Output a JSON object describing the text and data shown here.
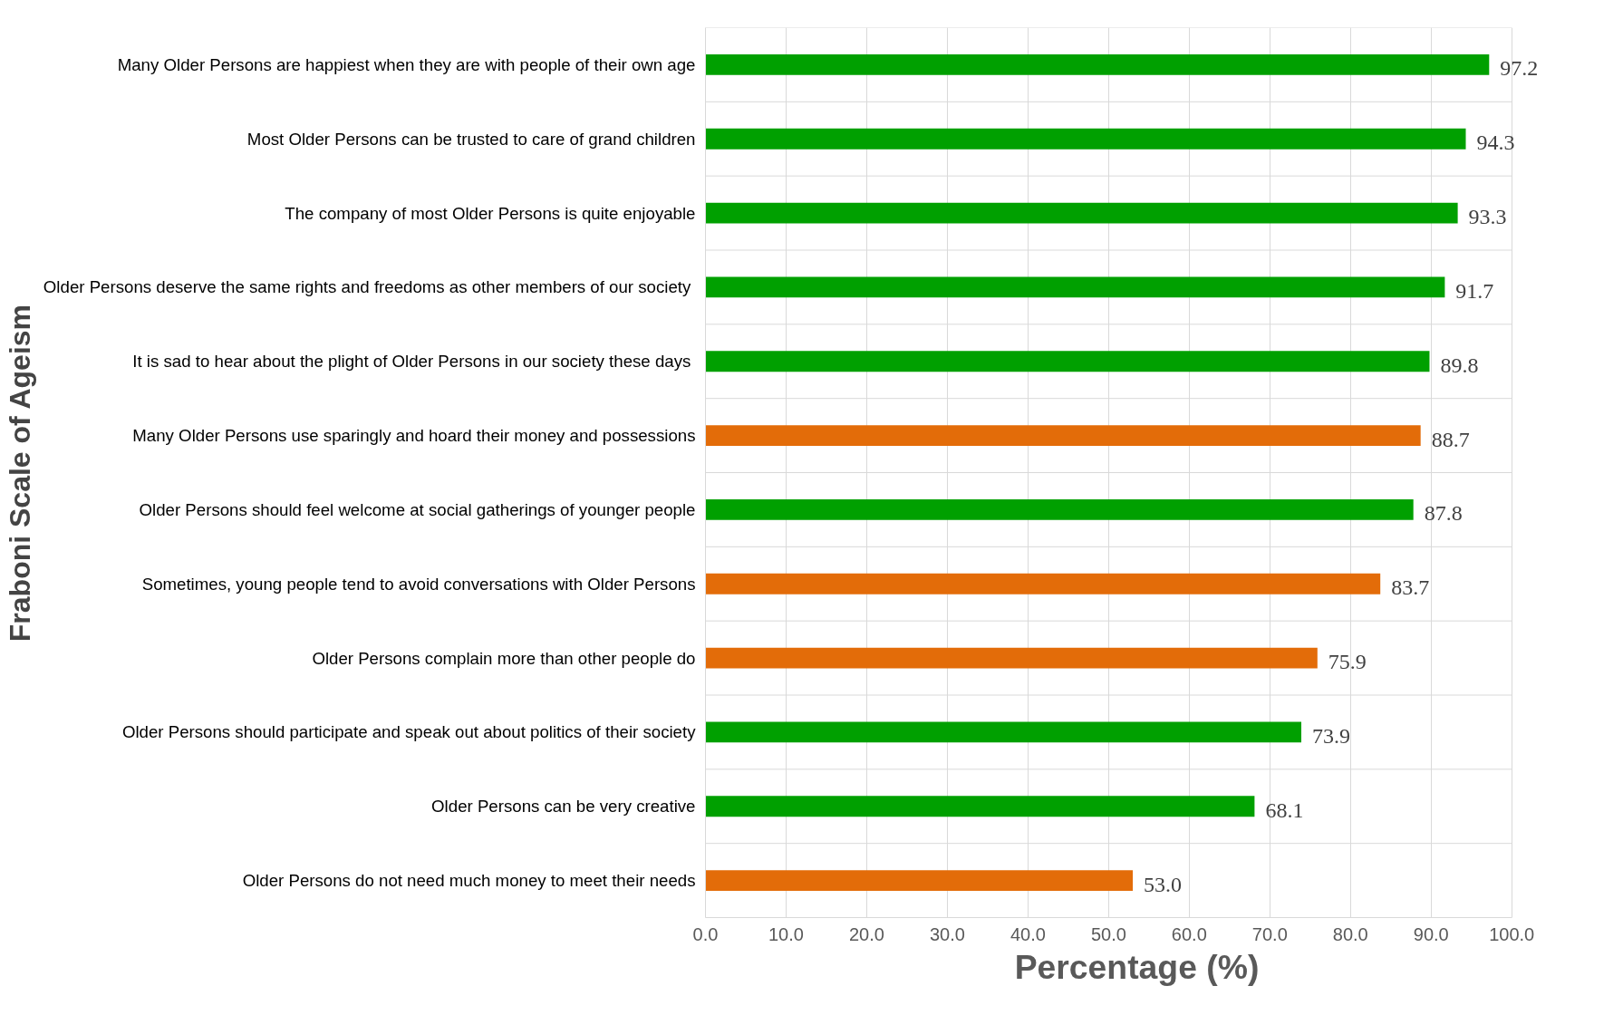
{
  "chart_data": {
    "type": "bar",
    "orientation": "horizontal",
    "xlabel": "Percentage (%)",
    "ylabel": "Fraboni Scale of Ageism",
    "categories": [
      "Many Older Persons are happiest when they are with people of their own age",
      "Most Older Persons can be trusted to care of grand children",
      "The company of most Older Persons is quite enjoyable",
      "Older Persons deserve the same rights and freedoms as  other members of our society",
      "It is sad to hear about the plight of Older Persons  in our society these days",
      "Many Older Persons use sparingly and hoard their money and possessions",
      "Older Persons should feel welcome at social gatherings of younger people",
      "Sometimes, young people tend to avoid conversations with Older Persons",
      "Older Persons complain more than other people do",
      "Older Persons should participate and speak out about politics of their society",
      "Older Persons can be very creative",
      "Older Persons do not need much money to meet their needs"
    ],
    "values": [
      97.2,
      94.3,
      93.3,
      91.7,
      89.8,
      88.7,
      87.8,
      83.7,
      75.9,
      73.9,
      68.1,
      53.0
    ],
    "value_labels": [
      "97.2",
      "94.3",
      "93.3",
      "91.7",
      "89.8",
      "88.7",
      "87.8",
      "83.7",
      "75.9",
      "73.9",
      "68.1",
      "53.0"
    ],
    "colors": [
      "#00a000",
      "#00a000",
      "#00a000",
      "#00a000",
      "#00a000",
      "#e36c09",
      "#00a000",
      "#e36c09",
      "#e36c09",
      "#00a000",
      "#00a000",
      "#e36c09"
    ],
    "xlim": [
      0,
      100
    ],
    "xticks": [
      {
        "value": 0,
        "label": "0.0"
      },
      {
        "value": 10,
        "label": "10.0"
      },
      {
        "value": 20,
        "label": "20.0"
      },
      {
        "value": 30,
        "label": "30.0"
      },
      {
        "value": 40,
        "label": "40.0"
      },
      {
        "value": 50,
        "label": "50.0"
      },
      {
        "value": 60,
        "label": "60.0"
      },
      {
        "value": 70,
        "label": "70.0"
      },
      {
        "value": 80,
        "label": "80.0"
      },
      {
        "value": 90,
        "label": "90.0"
      },
      {
        "value": 100,
        "label": "100.0"
      }
    ],
    "grid": true
  }
}
